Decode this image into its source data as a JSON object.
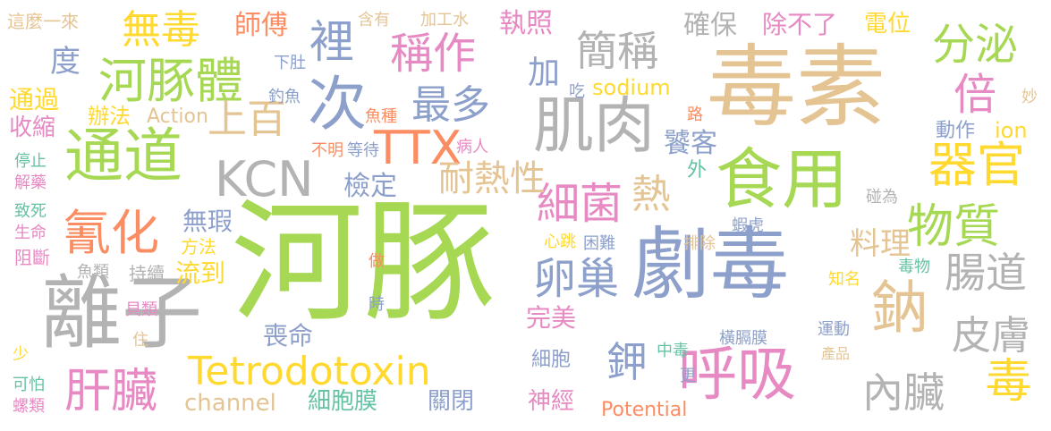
{
  "palette": {
    "green": "#a6d854",
    "tan": "#e5c494",
    "blue": "#8da0cb",
    "gray": "#b3b3b3",
    "yellow": "#ffd92f",
    "orange": "#fc8d62",
    "pink": "#e78ac3",
    "teal": "#66c2a5"
  },
  "words": [
    {
      "text": "河豚",
      "color": "green"
    },
    {
      "text": "毒素",
      "color": "tan"
    },
    {
      "text": "劇毒",
      "color": "blue"
    },
    {
      "text": "離子",
      "color": "gray"
    },
    {
      "text": "食用",
      "color": "green"
    },
    {
      "text": "肌肉",
      "color": "gray"
    },
    {
      "text": "通道",
      "color": "green"
    },
    {
      "text": "次",
      "color": "blue"
    },
    {
      "text": "鈉",
      "color": "tan"
    },
    {
      "text": "呼吸",
      "color": "pink"
    },
    {
      "text": "河豚體",
      "color": "green"
    },
    {
      "text": "KCN",
      "color": "gray"
    },
    {
      "text": "TTX",
      "color": "orange"
    },
    {
      "text": "氰化",
      "color": "orange"
    },
    {
      "text": "肝臟",
      "color": "pink"
    },
    {
      "text": "Tetrodotoxin",
      "color": "yellow"
    },
    {
      "text": "細菌",
      "color": "pink"
    },
    {
      "text": "器官",
      "color": "yellow"
    },
    {
      "text": "物質",
      "color": "green"
    },
    {
      "text": "稱作",
      "color": "pink"
    },
    {
      "text": "簡稱",
      "color": "gray"
    },
    {
      "text": "裡",
      "color": "blue"
    },
    {
      "text": "卵巢",
      "color": "blue"
    },
    {
      "text": "最多",
      "color": "blue"
    },
    {
      "text": "分泌",
      "color": "green"
    },
    {
      "text": "腸道",
      "color": "gray"
    },
    {
      "text": "內臟",
      "color": "gray"
    },
    {
      "text": "皮膚",
      "color": "gray"
    },
    {
      "text": "毒",
      "color": "yellow"
    },
    {
      "text": "無毒",
      "color": "yellow"
    },
    {
      "text": "倍",
      "color": "pink"
    },
    {
      "text": "上百",
      "color": "tan"
    },
    {
      "text": "耐熱性",
      "color": "tan"
    },
    {
      "text": "熱",
      "color": "tan"
    },
    {
      "text": "鉀",
      "color": "blue"
    },
    {
      "text": "師傅",
      "color": "orange"
    },
    {
      "text": "度",
      "color": "blue"
    },
    {
      "text": "加",
      "color": "blue"
    },
    {
      "text": "執照",
      "color": "pink"
    },
    {
      "text": "確保",
      "color": "gray"
    },
    {
      "text": "除不了",
      "color": "pink"
    },
    {
      "text": "電位",
      "color": "yellow"
    },
    {
      "text": "sodium",
      "color": "yellow"
    },
    {
      "text": "料理",
      "color": "tan"
    },
    {
      "text": "饕客",
      "color": "blue"
    },
    {
      "text": "檢定",
      "color": "blue"
    },
    {
      "text": "無瑕",
      "color": "blue"
    },
    {
      "text": "流到",
      "color": "yellow"
    },
    {
      "text": "喪命",
      "color": "blue"
    },
    {
      "text": "完美",
      "color": "pink"
    },
    {
      "text": "細胞膜",
      "color": "teal"
    },
    {
      "text": "關閉",
      "color": "blue"
    },
    {
      "text": "神經",
      "color": "pink"
    },
    {
      "text": "channel",
      "color": "tan"
    },
    {
      "text": "Potential",
      "color": "orange"
    },
    {
      "text": "通過",
      "color": "yellow"
    },
    {
      "text": "收縮",
      "color": "pink"
    },
    {
      "text": "Action",
      "color": "tan"
    },
    {
      "text": "辦法",
      "color": "yellow"
    },
    {
      "text": "ion",
      "color": "yellow"
    },
    {
      "text": "動作",
      "color": "blue"
    },
    {
      "text": "外",
      "color": "teal"
    },
    {
      "text": "細胞",
      "color": "blue"
    },
    {
      "text": "方法",
      "color": "yellow"
    },
    {
      "text": "持續",
      "color": "gray"
    },
    {
      "text": "這麼一來",
      "color": "tan"
    },
    {
      "text": "含有",
      "color": "tan"
    },
    {
      "text": "加工水",
      "color": "tan"
    },
    {
      "text": "下肚",
      "color": "blue"
    },
    {
      "text": "釣魚",
      "color": "blue"
    },
    {
      "text": "吃",
      "color": "blue"
    },
    {
      "text": "路",
      "color": "orange"
    },
    {
      "text": "魚種",
      "color": "orange"
    },
    {
      "text": "不明",
      "color": "orange"
    },
    {
      "text": "等待",
      "color": "blue"
    },
    {
      "text": "病人",
      "color": "pink"
    },
    {
      "text": "停止",
      "color": "teal"
    },
    {
      "text": "解藥",
      "color": "pink"
    },
    {
      "text": "致死",
      "color": "teal"
    },
    {
      "text": "生命",
      "color": "pink"
    },
    {
      "text": "阻斷",
      "color": "pink"
    },
    {
      "text": "魚類",
      "color": "gray"
    },
    {
      "text": "心跳",
      "color": "yellow"
    },
    {
      "text": "困難",
      "color": "blue"
    },
    {
      "text": "排除",
      "color": "tan"
    },
    {
      "text": "蝦虎",
      "color": "blue"
    },
    {
      "text": "碰為",
      "color": "gray"
    },
    {
      "text": "妙",
      "color": "tan"
    },
    {
      "text": "做",
      "color": "orange"
    },
    {
      "text": "時",
      "color": "blue"
    },
    {
      "text": "貝類",
      "color": "pink"
    },
    {
      "text": "住",
      "color": "tan"
    },
    {
      "text": "少",
      "color": "yellow"
    },
    {
      "text": "可怕",
      "color": "teal"
    },
    {
      "text": "螺類",
      "color": "pink"
    },
    {
      "text": "知名",
      "color": "yellow"
    },
    {
      "text": "毒物",
      "color": "teal"
    },
    {
      "text": "橫膈膜",
      "color": "blue"
    },
    {
      "text": "運動",
      "color": "blue"
    },
    {
      "text": "產品",
      "color": "tan"
    },
    {
      "text": "中毒",
      "color": "teal"
    },
    {
      "text": "更",
      "color": "blue"
    }
  ]
}
